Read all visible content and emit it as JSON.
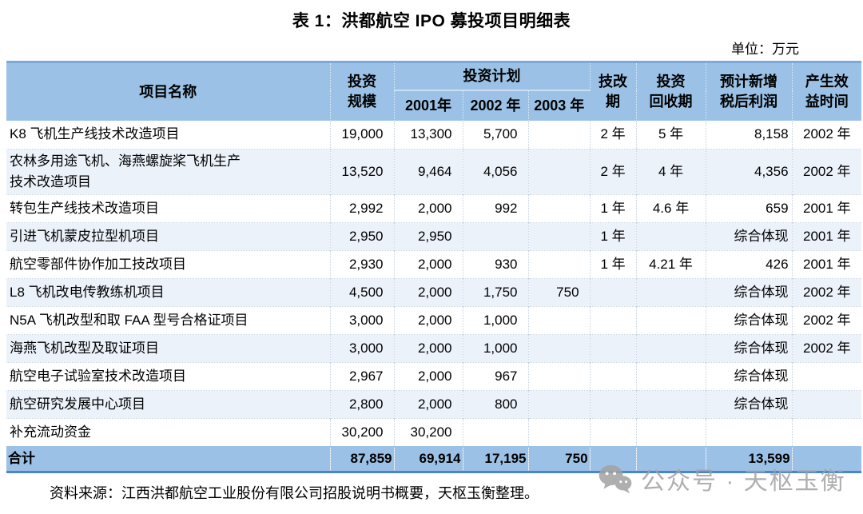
{
  "title": "表 1：洪都航空 IPO 募投项目明细表",
  "unit_label": "单位：万元",
  "colors": {
    "header_bg": "#9BC2E6",
    "stripe_bg": "#ECF2FA",
    "total_bottom_border": "#4D86C8",
    "grid_dotted": "#C3D2E2",
    "watermark_gray": "#A2A2A2"
  },
  "table": {
    "columns": [
      "项目名称",
      "投资\n规模",
      "2001年",
      "2002 年",
      "2003 年",
      "技改\n期",
      "投资\n回收期",
      "预计新增\n税后利润",
      "产生效\n益时间"
    ],
    "group_header": "投资计划",
    "rows": [
      [
        "K8 飞机生产线技术改造项目",
        "19,000",
        "13,300",
        "5,700",
        "",
        "2 年",
        "5 年",
        "8,158",
        "2002 年"
      ],
      [
        "农林多用途飞机、海燕螺旋桨飞机生产\n技术改造项目",
        "13,520",
        "9,464",
        "4,056",
        "",
        "2 年",
        "4 年",
        "4,356",
        "2002 年"
      ],
      [
        "转包生产线技术改造项目",
        "2,992",
        "2,000",
        "992",
        "",
        "1 年",
        "4.6 年",
        "659",
        "2001 年"
      ],
      [
        "引进飞机蒙皮拉型机项目",
        "2,950",
        "2,950",
        "",
        "",
        "1 年",
        "",
        "综合体现",
        "2001 年"
      ],
      [
        "航空零部件协作加工技改项目",
        "2,930",
        "2,000",
        "930",
        "",
        "1 年",
        "4.21 年",
        "426",
        "2001 年"
      ],
      [
        "L8 飞机改电传教练机项目",
        "4,500",
        "2,000",
        "1,750",
        "750",
        "",
        "",
        "综合体现",
        "2002 年"
      ],
      [
        "N5A 飞机改型和取 FAA 型号合格证项目",
        "3,000",
        "2,000",
        "1,000",
        "",
        "",
        "",
        "综合体现",
        "2002 年"
      ],
      [
        "海燕飞机改型及取证项目",
        "3,000",
        "2,000",
        "1,000",
        "",
        "",
        "",
        "综合体现",
        "2002 年"
      ],
      [
        "航空电子试验室技术改造项目",
        "2,967",
        "2,000",
        "967",
        "",
        "",
        "",
        "综合体现",
        ""
      ],
      [
        "航空研究发展中心项目",
        "2,800",
        "2,000",
        "800",
        "",
        "",
        "",
        "综合体现",
        ""
      ],
      [
        "补充流动资金",
        "30,200",
        "30,200",
        "",
        "",
        "",
        "",
        "",
        ""
      ]
    ],
    "total_row": [
      "合计",
      "87,859",
      "69,914",
      "17,195",
      "750",
      "",
      "",
      "13,599",
      ""
    ]
  },
  "watermark": {
    "icon": "wechat-icon",
    "text": "公众号 · 天枢玉衡"
  },
  "footer_source": "资料来源：江西洪都航空工业股份有限公司招股说明书概要，天枢玉衡整理。"
}
